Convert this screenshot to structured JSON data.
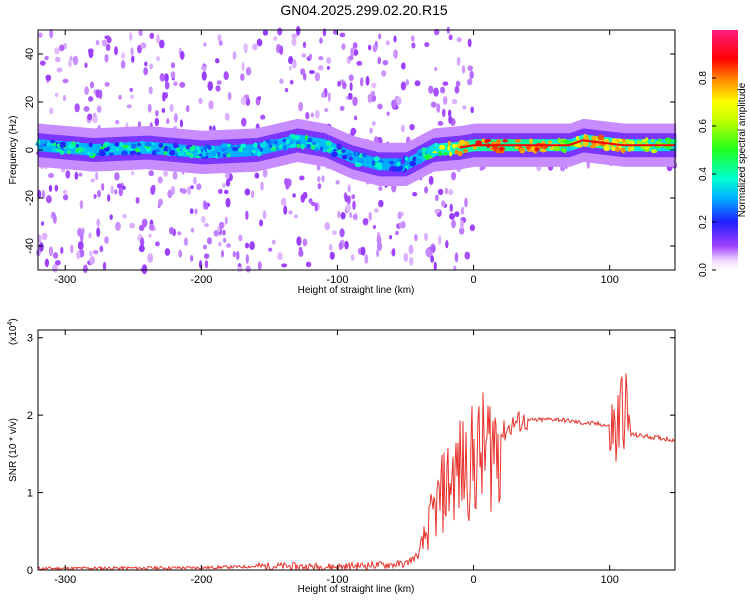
{
  "title": "GN04.2025.299.02.20.R15",
  "chart_data": [
    {
      "type": "heatmap",
      "xlabel": "Height of straight line (km)",
      "ylabel": "Frequency (Hz)",
      "xlim": [
        -320,
        148
      ],
      "ylim": [
        -50,
        50
      ],
      "xticks": [
        -300,
        -200,
        -100,
        0,
        100
      ],
      "yticks": [
        -40,
        -20,
        0,
        20,
        40
      ],
      "colorbar": {
        "label": "Normalized spectral amplitude",
        "range": [
          0,
          1
        ],
        "ticks": [
          0.0,
          0.2,
          0.4,
          0.6,
          0.8
        ],
        "colormap": "rainbow (magenta-blue-cyan-green-yellow-red-pink)"
      },
      "ridge": [
        {
          "x": -320,
          "freq": 2,
          "amp": 0.4
        },
        {
          "x": -280,
          "freq": 0,
          "amp": 0.45
        },
        {
          "x": -240,
          "freq": 1,
          "amp": 0.45
        },
        {
          "x": -200,
          "freq": -1,
          "amp": 0.4
        },
        {
          "x": -160,
          "freq": 0,
          "amp": 0.4
        },
        {
          "x": -130,
          "freq": 4,
          "amp": 0.45
        },
        {
          "x": -110,
          "freq": 2,
          "amp": 0.45
        },
        {
          "x": -90,
          "freq": -3,
          "amp": 0.4
        },
        {
          "x": -70,
          "freq": -6,
          "amp": 0.4
        },
        {
          "x": -50,
          "freq": -6,
          "amp": 0.35
        },
        {
          "x": -30,
          "freq": 0,
          "amp": 0.6
        },
        {
          "x": -10,
          "freq": 1,
          "amp": 0.85
        },
        {
          "x": 0,
          "freq": 2,
          "amp": 0.85
        },
        {
          "x": 20,
          "freq": 2,
          "amp": 0.9
        },
        {
          "x": 50,
          "freq": 2,
          "amp": 0.85
        },
        {
          "x": 70,
          "freq": 2,
          "amp": 0.5
        },
        {
          "x": 80,
          "freq": 4,
          "amp": 0.8
        },
        {
          "x": 95,
          "freq": 3,
          "amp": 0.8
        },
        {
          "x": 110,
          "freq": 2,
          "amp": 0.75
        },
        {
          "x": 148,
          "freq": 2,
          "amp": 0.5
        }
      ]
    },
    {
      "type": "line",
      "xlabel": "Height of straight line (km)",
      "ylabel": "SNR (10 * v/v)",
      "yscale_label": "(x10",
      "yscale_exp": "4",
      "xlim": [
        -320,
        148
      ],
      "ylim": [
        0,
        3.1
      ],
      "xticks": [
        -300,
        -200,
        -100,
        0,
        100
      ],
      "yticks": [
        0,
        1,
        2,
        3
      ],
      "color": "#e8332d",
      "series": [
        {
          "x": [
            -320,
            -200,
            -150,
            -100,
            -80,
            -60,
            -50,
            -40,
            -30,
            -20,
            -10,
            0,
            10,
            20,
            30,
            40,
            60,
            80,
            95,
            100,
            105,
            110,
            115,
            130,
            148
          ],
          "y": [
            0.02,
            0.03,
            0.05,
            0.04,
            0.06,
            0.07,
            0.08,
            0.2,
            0.7,
            1.1,
            1.3,
            1.4,
            1.55,
            1.75,
            1.9,
            1.93,
            1.95,
            1.9,
            1.88,
            1.85,
            1.75,
            2.2,
            1.75,
            1.72,
            1.68
          ]
        }
      ]
    }
  ]
}
